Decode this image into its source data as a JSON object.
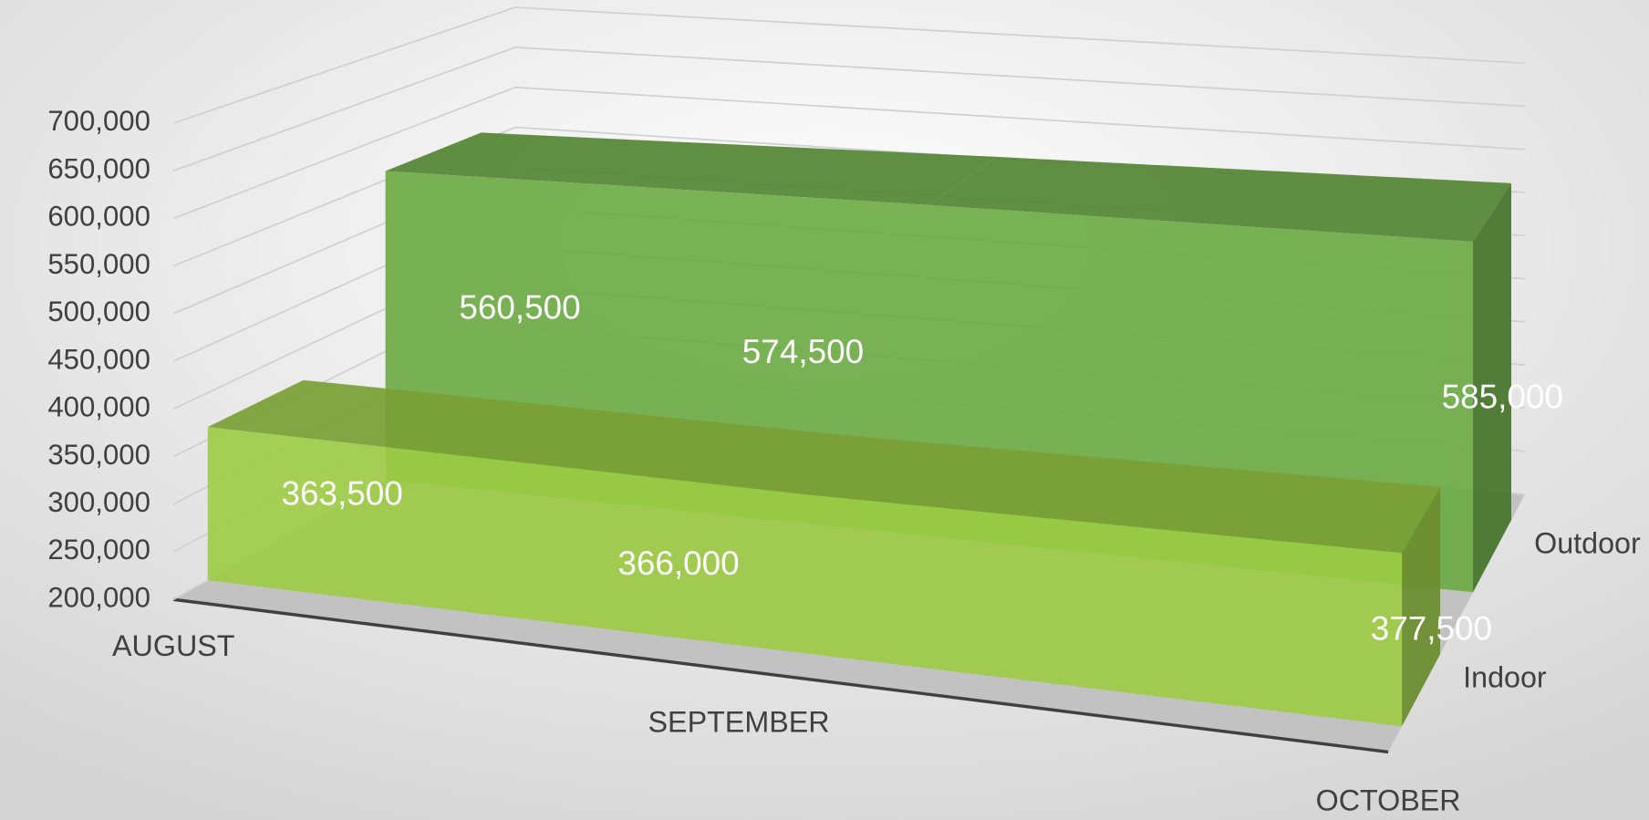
{
  "chart_data": {
    "type": "area3d",
    "categories": [
      "AUGUST",
      "SEPTEMBER",
      "OCTOBER"
    ],
    "series": [
      {
        "name": "Indoor",
        "color": "#9ccc44",
        "values": [
          363500,
          366000,
          377500
        ],
        "value_labels": [
          "363,500",
          "366,000",
          "377,500"
        ]
      },
      {
        "name": "Outdoor",
        "color": "#6aaa42",
        "values": [
          560500,
          574500,
          585000
        ],
        "value_labels": [
          "560,500",
          "574,500",
          "585,000"
        ]
      }
    ],
    "ylim": [
      200000,
      700000
    ],
    "yticks": [
      {
        "value": 200000,
        "label": "200,000"
      },
      {
        "value": 250000,
        "label": "250,000"
      },
      {
        "value": 300000,
        "label": "300,000"
      },
      {
        "value": 350000,
        "label": "350,000"
      },
      {
        "value": 400000,
        "label": "400,000"
      },
      {
        "value": 450000,
        "label": "450,000"
      },
      {
        "value": 500000,
        "label": "500,000"
      },
      {
        "value": 550000,
        "label": "550,000"
      },
      {
        "value": 600000,
        "label": "600,000"
      },
      {
        "value": 650000,
        "label": "650,000"
      },
      {
        "value": 700000,
        "label": "700,000"
      }
    ],
    "grid": true
  }
}
